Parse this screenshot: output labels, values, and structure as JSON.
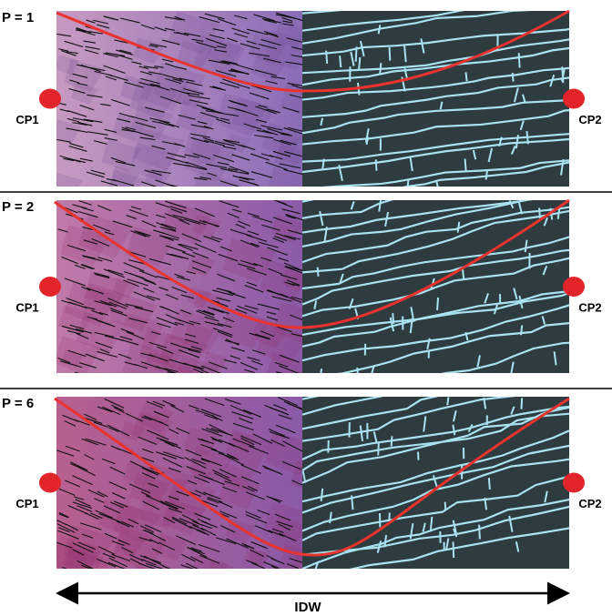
{
  "panels": [
    {
      "label": "P = 1",
      "left_point": "CP1",
      "right_point": "CP2"
    },
    {
      "label": "P = 2",
      "left_point": "CP1",
      "right_point": "CP2"
    },
    {
      "label": "P = 6",
      "left_point": "CP1",
      "right_point": "CP2"
    }
  ],
  "axis_label": "IDW"
}
